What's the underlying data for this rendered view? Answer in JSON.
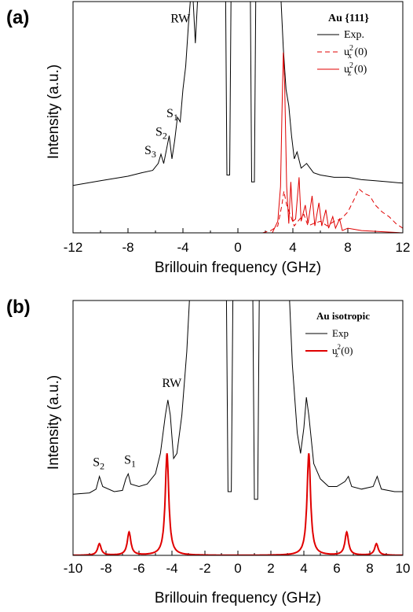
{
  "chart_data": [
    {
      "type": "line",
      "panel_label": "(a)",
      "title": "",
      "xlabel": "Brillouin frequency (GHz)",
      "ylabel": "Intensity (a.u.)",
      "xlim": [
        -12,
        12
      ],
      "xticks": [
        "-12",
        "-8",
        "-4",
        "0",
        "4",
        "8",
        "12"
      ],
      "legend_title": "Au {111}",
      "legend_placement": "top-right",
      "annotations": [
        {
          "base": "RW",
          "sub": "",
          "x": -4.9,
          "y": 0.91
        },
        {
          "base": "S",
          "sub": "1",
          "x": -5.2,
          "y": 0.5
        },
        {
          "base": "S",
          "sub": "2",
          "x": -6.0,
          "y": 0.42
        },
        {
          "base": "S",
          "sub": "3",
          "x": -6.8,
          "y": 0.34
        }
      ],
      "series": [
        {
          "name": "Exp.",
          "legend_base": "Exp.",
          "color": "#000000",
          "style": "solid",
          "points": [
            [
              -12,
              0.205
            ],
            [
              -11,
              0.215
            ],
            [
              -10,
              0.225
            ],
            [
              -9,
              0.235
            ],
            [
              -8,
              0.245
            ],
            [
              -7,
              0.26
            ],
            [
              -6.2,
              0.27
            ],
            [
              -5.8,
              0.3
            ],
            [
              -5.6,
              0.34
            ],
            [
              -5.4,
              0.3
            ],
            [
              -5.2,
              0.36
            ],
            [
              -5,
              0.42
            ],
            [
              -4.8,
              0.32
            ],
            [
              -4.6,
              0.4
            ],
            [
              -4.4,
              0.5
            ],
            [
              -4.2,
              0.48
            ],
            [
              -4,
              0.62
            ],
            [
              -3.8,
              0.72
            ],
            [
              -3.6,
              0.9
            ],
            [
              -3.4,
              1.05
            ],
            [
              -3.3,
              1.05
            ],
            [
              -3.1,
              0.82
            ],
            [
              -2.9,
              1.05
            ],
            [
              -0.9,
              1.05
            ],
            [
              -0.8,
              0.25
            ],
            [
              -0.6,
              0.25
            ],
            [
              -0.5,
              1.05
            ],
            [
              0.9,
              1.05
            ],
            [
              1,
              0.22
            ],
            [
              1.2,
              0.22
            ],
            [
              1.3,
              1.05
            ],
            [
              3.1,
              1.05
            ],
            [
              3.3,
              0.8
            ],
            [
              3.5,
              0.62
            ],
            [
              3.7,
              0.55
            ],
            [
              3.9,
              0.42
            ],
            [
              4.1,
              0.32
            ],
            [
              4.3,
              0.35
            ],
            [
              4.6,
              0.28
            ],
            [
              5,
              0.3
            ],
            [
              5.5,
              0.26
            ],
            [
              6,
              0.25
            ],
            [
              7,
              0.24
            ],
            [
              8,
              0.24
            ],
            [
              9,
              0.23
            ],
            [
              10,
              0.225
            ],
            [
              11,
              0.22
            ],
            [
              12,
              0.215
            ]
          ]
        },
        {
          "name": "u2x (0)",
          "legend_base": "u",
          "legend_sup": "2",
          "legend_sub": "x",
          "legend_rest": " (0)",
          "color": "#e00000",
          "style": "dashed",
          "points": [
            [
              1.8,
              0.0
            ],
            [
              2.4,
              0.01
            ],
            [
              2.9,
              0.03
            ],
            [
              3.2,
              0.12
            ],
            [
              3.35,
              0.18
            ],
            [
              3.55,
              0.12
            ],
            [
              3.8,
              0.08
            ],
            [
              4.1,
              0.03
            ],
            [
              4.5,
              0.06
            ],
            [
              4.8,
              0.08
            ],
            [
              5.1,
              0.03
            ],
            [
              5.5,
              0.04
            ],
            [
              6,
              0.05
            ],
            [
              6.5,
              0.03
            ],
            [
              7,
              0.05
            ],
            [
              7.5,
              0.06
            ],
            [
              8,
              0.09
            ],
            [
              8.5,
              0.15
            ],
            [
              8.8,
              0.19
            ],
            [
              9.2,
              0.17
            ],
            [
              9.6,
              0.16
            ],
            [
              10,
              0.12
            ],
            [
              10.5,
              0.09
            ],
            [
              11,
              0.07
            ],
            [
              11.5,
              0.04
            ],
            [
              12,
              0.02
            ]
          ]
        },
        {
          "name": "u2z (0)",
          "legend_base": "u",
          "legend_sup": "2",
          "legend_sub": "z",
          "legend_rest": " (0)",
          "color": "#e00000",
          "style": "solid",
          "points": [
            [
              2.5,
              0.0
            ],
            [
              2.9,
              0.05
            ],
            [
              3.1,
              0.2
            ],
            [
              3.2,
              0.5
            ],
            [
              3.3,
              0.78
            ],
            [
              3.4,
              0.65
            ],
            [
              3.55,
              0.2
            ],
            [
              3.7,
              0.04
            ],
            [
              3.85,
              0.22
            ],
            [
              4,
              0.05
            ],
            [
              4.2,
              0.06
            ],
            [
              4.45,
              0.24
            ],
            [
              4.6,
              0.05
            ],
            [
              4.9,
              0.12
            ],
            [
              5.1,
              0.04
            ],
            [
              5.4,
              0.16
            ],
            [
              5.6,
              0.03
            ],
            [
              5.9,
              0.13
            ],
            [
              6.1,
              0.03
            ],
            [
              6.4,
              0.1
            ],
            [
              6.6,
              0.02
            ],
            [
              6.9,
              0.07
            ],
            [
              7.1,
              0.02
            ],
            [
              7.4,
              0.06
            ],
            [
              7.6,
              0.01
            ],
            [
              8,
              0.02
            ],
            [
              9,
              0.01
            ],
            [
              12,
              0.0
            ]
          ]
        }
      ]
    },
    {
      "type": "line",
      "panel_label": "(b)",
      "title": "",
      "xlabel": "Brillouin frequency (GHz)",
      "ylabel": "Intensity (a.u.)",
      "xlim": [
        -10,
        10
      ],
      "xticks": [
        "-10",
        "-8",
        "-6",
        "-4",
        "-2",
        "0",
        "2",
        "4",
        "6",
        "8",
        "10"
      ],
      "legend_title": "Au isotropic",
      "legend_placement": "top-right",
      "annotations": [
        {
          "base": "RW",
          "sub": "",
          "x": -4.6,
          "y": 0.66
        },
        {
          "base": "S",
          "sub": "2",
          "x": -8.8,
          "y": 0.35
        },
        {
          "base": "S",
          "sub": "1",
          "x": -6.9,
          "y": 0.36
        }
      ],
      "series": [
        {
          "name": "Exp",
          "legend_base": "Exp",
          "color": "#000000",
          "style": "solid",
          "points": [
            [
              -10,
              0.24
            ],
            [
              -9,
              0.245
            ],
            [
              -8.6,
              0.26
            ],
            [
              -8.4,
              0.31
            ],
            [
              -8.2,
              0.27
            ],
            [
              -7.5,
              0.25
            ],
            [
              -7,
              0.255
            ],
            [
              -6.8,
              0.3
            ],
            [
              -6.65,
              0.32
            ],
            [
              -6.5,
              0.28
            ],
            [
              -6,
              0.27
            ],
            [
              -5.5,
              0.28
            ],
            [
              -5,
              0.32
            ],
            [
              -4.7,
              0.4
            ],
            [
              -4.4,
              0.55
            ],
            [
              -4.25,
              0.61
            ],
            [
              -4.1,
              0.55
            ],
            [
              -3.9,
              0.38
            ],
            [
              -3.7,
              0.4
            ],
            [
              -3.4,
              0.55
            ],
            [
              -3.1,
              0.8
            ],
            [
              -2.9,
              1.05
            ],
            [
              -0.7,
              1.05
            ],
            [
              -0.6,
              0.25
            ],
            [
              -0.4,
              0.25
            ],
            [
              -0.3,
              1.05
            ],
            [
              0.9,
              1.05
            ],
            [
              1,
              0.22
            ],
            [
              1.2,
              0.22
            ],
            [
              1.3,
              1.05
            ],
            [
              3.1,
              1.05
            ],
            [
              3.3,
              0.75
            ],
            [
              3.6,
              0.48
            ],
            [
              3.8,
              0.4
            ],
            [
              4,
              0.5
            ],
            [
              4.15,
              0.62
            ],
            [
              4.3,
              0.55
            ],
            [
              4.6,
              0.36
            ],
            [
              5,
              0.3
            ],
            [
              5.5,
              0.27
            ],
            [
              6,
              0.27
            ],
            [
              6.5,
              0.29
            ],
            [
              6.7,
              0.31
            ],
            [
              6.9,
              0.27
            ],
            [
              7.5,
              0.26
            ],
            [
              8.2,
              0.27
            ],
            [
              8.45,
              0.31
            ],
            [
              8.7,
              0.26
            ],
            [
              9.5,
              0.25
            ],
            [
              10,
              0.25
            ]
          ]
        },
        {
          "name": "u2z (0)",
          "legend_base": "u",
          "legend_sup": "2",
          "legend_sub": "z",
          "legend_rest": " (0)",
          "color": "#e00000",
          "style": "solid",
          "peaks": [
            [
              -8.4,
              0.045
            ],
            [
              -6.6,
              0.09
            ],
            [
              -4.3,
              0.4
            ],
            [
              4.3,
              0.4
            ],
            [
              6.6,
              0.09
            ],
            [
              8.4,
              0.045
            ]
          ]
        }
      ]
    }
  ]
}
